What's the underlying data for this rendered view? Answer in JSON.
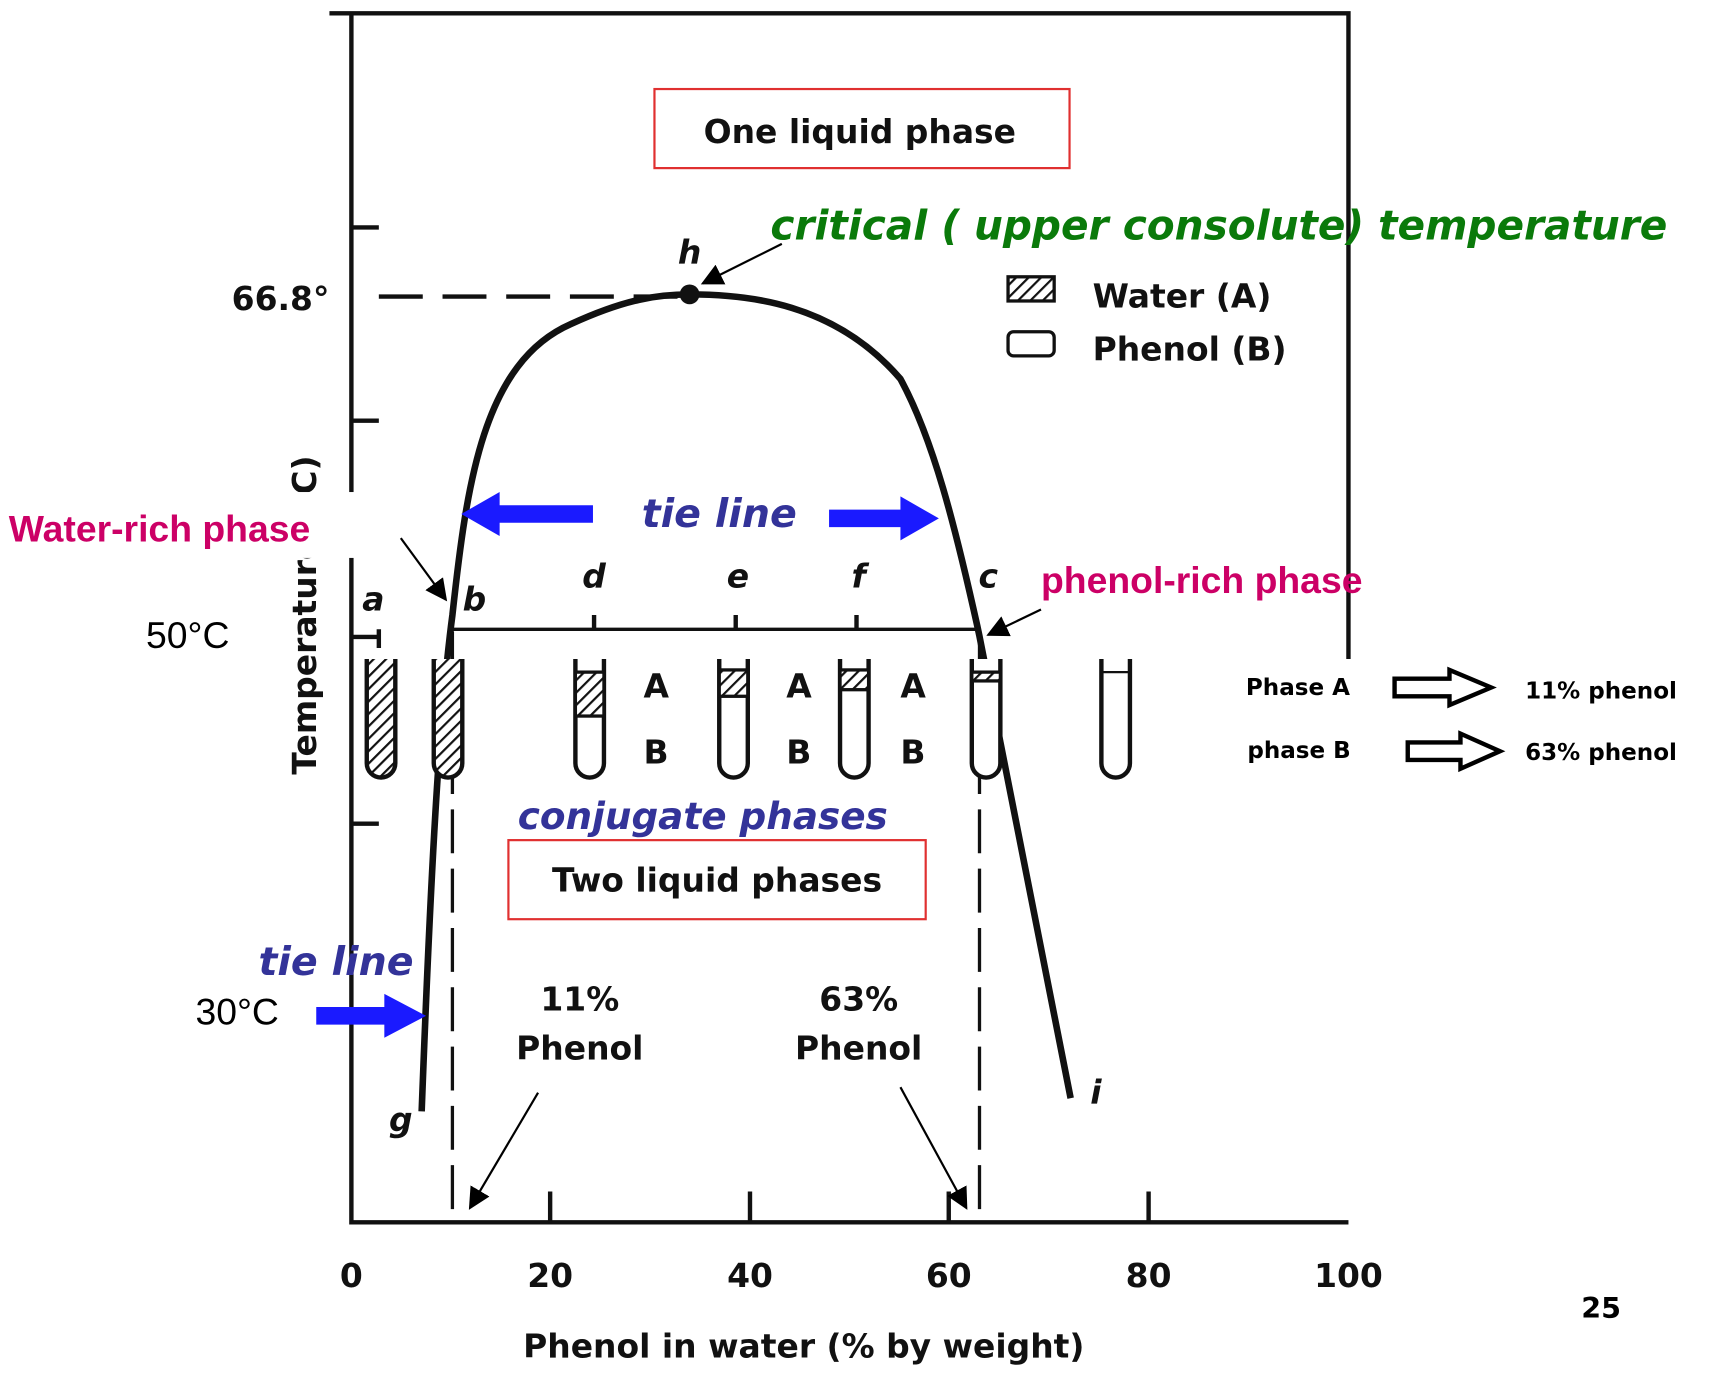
{
  "header": {
    "box_label": "One liquid phase",
    "critical_label": "critical ( upper consolute) temperature"
  },
  "legend": {
    "water": "Water (A)",
    "phenol": "Phenol (B)"
  },
  "axes": {
    "y_label": "Temperature (°C)",
    "x_label": "Phenol in water (% by weight)",
    "critical_temp": "66.8°",
    "x_ticks": [
      "0",
      "20",
      "40",
      "60",
      "80",
      "100"
    ]
  },
  "points": {
    "h": "h",
    "a": "a",
    "b": "b",
    "d": "d",
    "e": "e",
    "f": "f",
    "c": "c",
    "g": "g",
    "i": "i"
  },
  "tubes": {
    "labels": [
      [
        "A",
        "B"
      ],
      [
        "A",
        "B"
      ],
      [
        "A",
        "B"
      ]
    ]
  },
  "annotations": {
    "water_rich": "Water-rich phase",
    "phenol_rich": "phenol-rich phase",
    "tie_line_top": "tie line",
    "tie_line_bottom": "tie line",
    "temp_50": "50°C",
    "temp_30": "30°C",
    "conjugate": "conjugate phases",
    "two_phases": "Two liquid phases",
    "left_pct": "11%",
    "left_name": "Phenol",
    "right_pct": "63%",
    "right_name": "Phenol"
  },
  "phases": [
    {
      "name": "Phase A",
      "value": "11% phenol"
    },
    {
      "name": "phase B",
      "value": "63% phenol"
    }
  ],
  "page_number": "25"
}
